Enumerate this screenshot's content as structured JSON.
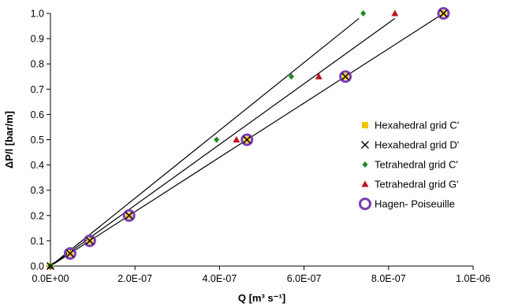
{
  "chart_data": {
    "type": "scatter",
    "xlabel": "Q [m³ s⁻¹]",
    "ylabel": "ΔP/l [bar/m]",
    "xlim": [
      0,
      1e-06
    ],
    "ylim": [
      0,
      1.0
    ],
    "x_ticks": [
      {
        "value": 0,
        "label": "0.0E+00"
      },
      {
        "value": 2e-07,
        "label": "2.0E-07"
      },
      {
        "value": 4e-07,
        "label": "4.0E-07"
      },
      {
        "value": 6e-07,
        "label": "6.0E-07"
      },
      {
        "value": 8e-07,
        "label": "8.0E-07"
      },
      {
        "value": 1e-06,
        "label": "1.0E-06"
      }
    ],
    "y_ticks": [
      {
        "value": 0.0,
        "label": "0.0"
      },
      {
        "value": 0.1,
        "label": "0.1"
      },
      {
        "value": 0.2,
        "label": "0.2"
      },
      {
        "value": 0.3,
        "label": "0.3"
      },
      {
        "value": 0.4,
        "label": "0.4"
      },
      {
        "value": 0.5,
        "label": "0.5"
      },
      {
        "value": 0.6,
        "label": "0.6"
      },
      {
        "value": 0.7,
        "label": "0.7"
      },
      {
        "value": 0.8,
        "label": "0.8"
      },
      {
        "value": 0.9,
        "label": "0.9"
      },
      {
        "value": 1.0,
        "label": "1.0"
      }
    ],
    "grid": false,
    "legend_position": "right",
    "series": [
      {
        "name": "Hexahedral grid C'",
        "marker": "square",
        "color": "#f5c400",
        "points": [
          [
            0,
            0
          ],
          [
            4.65e-08,
            0.05
          ],
          [
            9.3e-08,
            0.1
          ],
          [
            1.86e-07,
            0.2
          ],
          [
            4.65e-07,
            0.5
          ],
          [
            6.98e-07,
            0.75
          ],
          [
            9.3e-07,
            1.0
          ]
        ]
      },
      {
        "name": "Hexahedral grid D'",
        "marker": "x",
        "color": "#000000",
        "points": [
          [
            0,
            0
          ],
          [
            4.65e-08,
            0.05
          ],
          [
            9.3e-08,
            0.1
          ],
          [
            1.86e-07,
            0.2
          ],
          [
            4.65e-07,
            0.5
          ],
          [
            6.98e-07,
            0.75
          ],
          [
            9.3e-07,
            1.0
          ]
        ]
      },
      {
        "name": "Tetrahedral grid C'",
        "marker": "diamond",
        "color": "#1e8a1e",
        "points": [
          [
            0,
            0
          ],
          [
            3.93e-07,
            0.5
          ],
          [
            5.7e-07,
            0.75
          ],
          [
            7.4e-07,
            1.0
          ]
        ]
      },
      {
        "name": "Tetrahedral grid G'",
        "marker": "triangle",
        "color": "#c0141c",
        "points": [
          [
            0,
            0
          ],
          [
            4.4e-07,
            0.5
          ],
          [
            6.35e-07,
            0.75
          ],
          [
            8.15e-07,
            1.0
          ]
        ]
      },
      {
        "name": "Hagen- Poiseuille",
        "marker": "circle",
        "color": "#7b3fb5",
        "points": [
          [
            4.65e-08,
            0.05
          ],
          [
            9.3e-08,
            0.1
          ],
          [
            1.86e-07,
            0.2
          ],
          [
            4.65e-07,
            0.5
          ],
          [
            6.98e-07,
            0.75
          ],
          [
            9.3e-07,
            1.0
          ]
        ]
      }
    ],
    "trendlines": [
      {
        "from": [
          0,
          0
        ],
        "to": [
          7.3e-07,
          0.98
        ],
        "color": "#000000"
      },
      {
        "from": [
          0,
          0
        ],
        "to": [
          8.15e-07,
          0.98
        ],
        "color": "#000000"
      },
      {
        "from": [
          0,
          0
        ],
        "to": [
          9.3e-07,
          1.0
        ],
        "color": "#000000"
      }
    ]
  }
}
